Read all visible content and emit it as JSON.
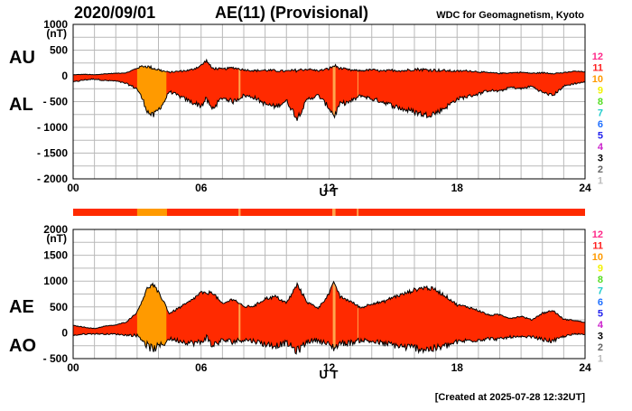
{
  "header": {
    "date": "2020/09/01",
    "title": "AE(11) (Provisional)",
    "source": "WDC for Geomagnetism, Kyoto"
  },
  "footer": {
    "created": "[Created at 2025-07-28 12:32UT]"
  },
  "colors": {
    "fill_main": "#ff2a00",
    "fill_alt": "#ff9a00",
    "fill_thin": "#ffa64d",
    "axis": "#000000",
    "grid": "#b9b9b9"
  },
  "station_scale": {
    "labels": [
      "12",
      "11",
      "10",
      "9",
      "8",
      "7",
      "6",
      "5",
      "4",
      "3",
      "2",
      "1"
    ],
    "colors": [
      "#ff2a8a",
      "#ff2020",
      "#ff9a00",
      "#f2f200",
      "#55dd22",
      "#22cccc",
      "#1f6fff",
      "#2222ee",
      "#cc22cc",
      "#000000",
      "#666666",
      "#bbbbbb"
    ]
  },
  "chart_data": [
    {
      "type": "area",
      "panel": "AU/AL",
      "series_labels": [
        "AU",
        "AL"
      ],
      "unit_label": "(nT)",
      "xlabel": "U T",
      "xlim": [
        0,
        24
      ],
      "x_ticks": [
        "00",
        "06",
        "12",
        "18",
        "24"
      ],
      "ylim": [
        -2000,
        1000
      ],
      "y_ticks": [
        "1000",
        "500",
        "0",
        "- 500",
        "- 1000",
        "- 1500",
        "- 2000"
      ],
      "grid": true,
      "hours": [
        0,
        0.5,
        1,
        1.5,
        2,
        2.5,
        3,
        3.25,
        3.5,
        3.75,
        4,
        4.25,
        4.5,
        5,
        5.5,
        6,
        6.25,
        6.5,
        7,
        7.5,
        8,
        8.5,
        9,
        9.5,
        10,
        10.5,
        11,
        11.5,
        12,
        12.25,
        12.5,
        13,
        13.5,
        14,
        14.5,
        15,
        15.5,
        16,
        16.5,
        17,
        17.5,
        18,
        18.5,
        19,
        19.5,
        20,
        20.5,
        21,
        21.5,
        22,
        22.5,
        23,
        23.5,
        24
      ],
      "au": [
        20,
        30,
        20,
        40,
        50,
        60,
        150,
        190,
        180,
        150,
        120,
        90,
        70,
        90,
        110,
        200,
        300,
        150,
        130,
        160,
        120,
        100,
        110,
        100,
        90,
        110,
        130,
        100,
        140,
        200,
        150,
        110,
        100,
        120,
        90,
        110,
        100,
        130,
        120,
        110,
        100,
        90,
        100,
        80,
        60,
        50,
        60,
        70,
        50,
        60,
        50,
        60,
        90,
        80
      ],
      "al": [
        -120,
        -80,
        -60,
        -90,
        -100,
        -150,
        -250,
        -450,
        -700,
        -780,
        -650,
        -520,
        -300,
        -400,
        -500,
        -580,
        -450,
        -650,
        -420,
        -500,
        -380,
        -420,
        -550,
        -600,
        -480,
        -820,
        -450,
        -380,
        -620,
        -780,
        -550,
        -500,
        -380,
        -450,
        -500,
        -580,
        -650,
        -700,
        -760,
        -720,
        -600,
        -450,
        -400,
        -350,
        -280,
        -300,
        -220,
        -250,
        -200,
        -320,
        -380,
        -200,
        -150,
        -120
      ],
      "color_bands": [
        {
          "start": 3.0,
          "end": 4.4,
          "color": "#ff9a00"
        },
        {
          "start": 7.75,
          "end": 7.85,
          "color": "#ffa64d"
        },
        {
          "start": 12.15,
          "end": 12.3,
          "color": "#ffa64d"
        },
        {
          "start": 13.3,
          "end": 13.38,
          "color": "#ffa64d"
        }
      ]
    },
    {
      "type": "area",
      "panel": "AE/AO",
      "series_labels": [
        "AE",
        "AO"
      ],
      "unit_label": "(nT)",
      "xlabel": "U T",
      "xlim": [
        0,
        24
      ],
      "x_ticks": [
        "00",
        "06",
        "12",
        "18",
        "24"
      ],
      "ylim": [
        -500,
        2000
      ],
      "y_ticks": [
        "2000",
        "1500",
        "1000",
        "500",
        "0",
        "- 500"
      ],
      "grid": true,
      "hours": [
        0,
        0.5,
        1,
        1.5,
        2,
        2.5,
        3,
        3.25,
        3.5,
        3.75,
        4,
        4.25,
        4.5,
        5,
        5.5,
        6,
        6.25,
        6.5,
        7,
        7.5,
        8,
        8.5,
        9,
        9.5,
        10,
        10.5,
        11,
        11.5,
        12,
        12.25,
        12.5,
        13,
        13.5,
        14,
        14.5,
        15,
        15.5,
        16,
        16.5,
        17,
        17.5,
        18,
        18.5,
        19,
        19.5,
        20,
        20.5,
        21,
        21.5,
        22,
        22.5,
        23,
        23.5,
        24
      ],
      "ae": [
        140,
        110,
        80,
        130,
        150,
        210,
        400,
        640,
        880,
        930,
        770,
        610,
        370,
        490,
        610,
        780,
        750,
        800,
        550,
        660,
        500,
        520,
        660,
        700,
        570,
        930,
        580,
        480,
        760,
        980,
        700,
        610,
        480,
        570,
        590,
        690,
        750,
        830,
        880,
        830,
        700,
        540,
        500,
        430,
        340,
        350,
        280,
        320,
        250,
        380,
        430,
        260,
        240,
        200
      ],
      "ao": [
        -50,
        -25,
        -20,
        -25,
        -25,
        -45,
        -50,
        -130,
        -260,
        -315,
        -265,
        -215,
        -115,
        -155,
        -195,
        -190,
        -75,
        -250,
        -145,
        -170,
        -130,
        -160,
        -220,
        -250,
        -195,
        -355,
        -160,
        -140,
        -240,
        -290,
        -200,
        -195,
        -140,
        -165,
        -205,
        -235,
        -275,
        -285,
        -320,
        -305,
        -250,
        -180,
        -150,
        -135,
        -110,
        -125,
        -80,
        -90,
        -75,
        -130,
        -165,
        -70,
        -30,
        -20
      ],
      "color_bands": [
        {
          "start": 3.0,
          "end": 4.4,
          "color": "#ff9a00"
        },
        {
          "start": 7.75,
          "end": 7.85,
          "color": "#ffa64d"
        },
        {
          "start": 12.15,
          "end": 12.3,
          "color": "#ffa64d"
        },
        {
          "start": 13.3,
          "end": 13.38,
          "color": "#ffa64d"
        }
      ]
    }
  ]
}
